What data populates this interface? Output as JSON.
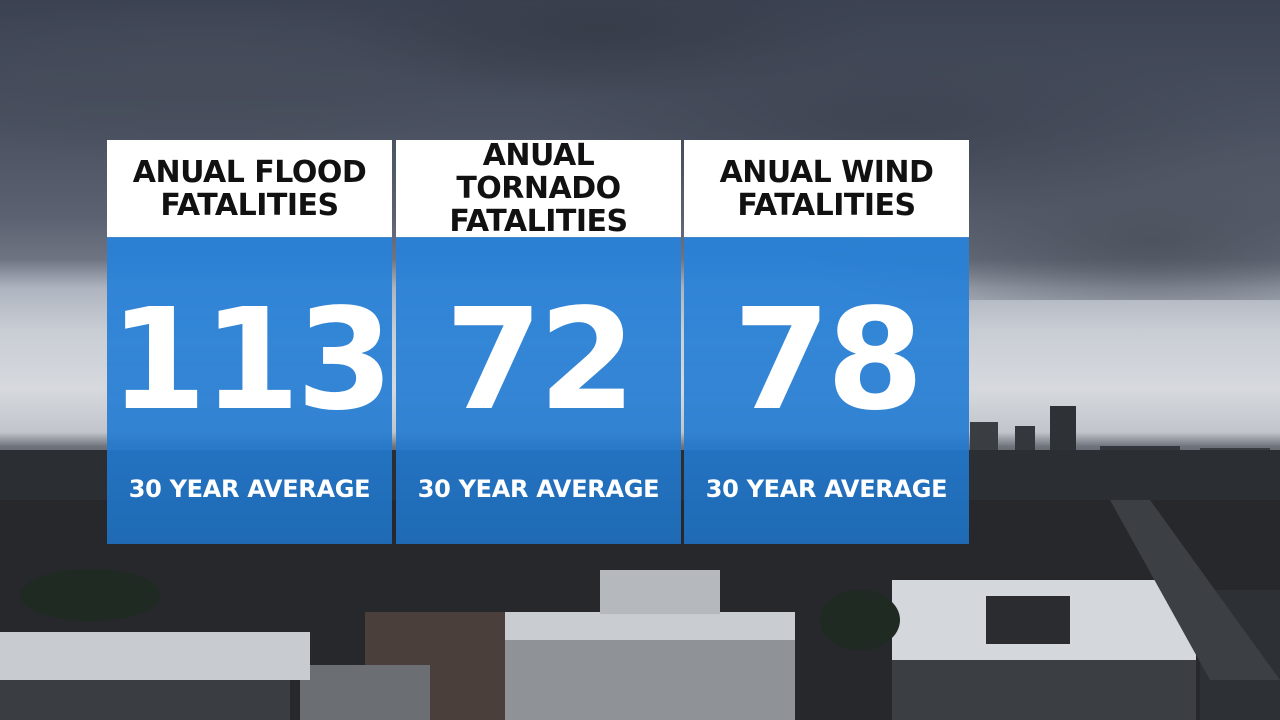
{
  "panels": [
    {
      "title_line1": "ANUAL FLOOD",
      "title_line2": "FATALITIES",
      "value": "113",
      "caption": "30 YEAR AVERAGE"
    },
    {
      "title_line1": "ANUAL TORNADO",
      "title_line2": "FATALITIES",
      "value": "72",
      "caption": "30 YEAR AVERAGE"
    },
    {
      "title_line1": "ANUAL WIND",
      "title_line2": "FATALITIES",
      "value": "78",
      "caption": "30 YEAR AVERAGE"
    }
  ],
  "colors": {
    "panel_blue": "#2582d8",
    "header_bg": "#ffffff",
    "header_text": "#111111",
    "value_text": "#ffffff"
  }
}
